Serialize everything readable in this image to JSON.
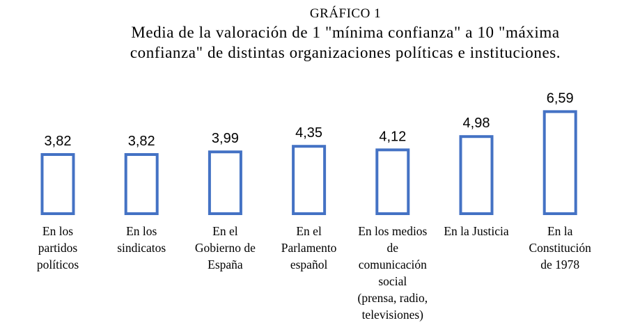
{
  "chart_data": {
    "type": "bar",
    "kicker": "GRÁFICO 1",
    "title": "Media de la valoración de 1 \"mínima confianza\" a 10 \"máxima confianza\" de distintas organizaciones políticas e instituciones.",
    "categories": [
      [
        "En los",
        "partidos",
        "políticos"
      ],
      [
        "En los",
        "sindicatos"
      ],
      [
        "En el",
        "Gobierno de",
        "España"
      ],
      [
        "En el",
        "Parlamento",
        "español"
      ],
      [
        "En los medios",
        "de",
        "comunicación",
        "social",
        "(prensa, radio,",
        "televisiones)"
      ],
      [
        "En la Justicia"
      ],
      [
        "En la",
        "Constitución",
        "de 1978"
      ]
    ],
    "values": [
      3.82,
      3.82,
      3.99,
      4.35,
      4.12,
      4.98,
      6.59
    ],
    "value_labels": [
      "3,82",
      "3,82",
      "3,99",
      "4,35",
      "4,12",
      "4,98",
      "6,59"
    ],
    "bar_color": "#4472c4",
    "grid": false,
    "legend": "none"
  }
}
